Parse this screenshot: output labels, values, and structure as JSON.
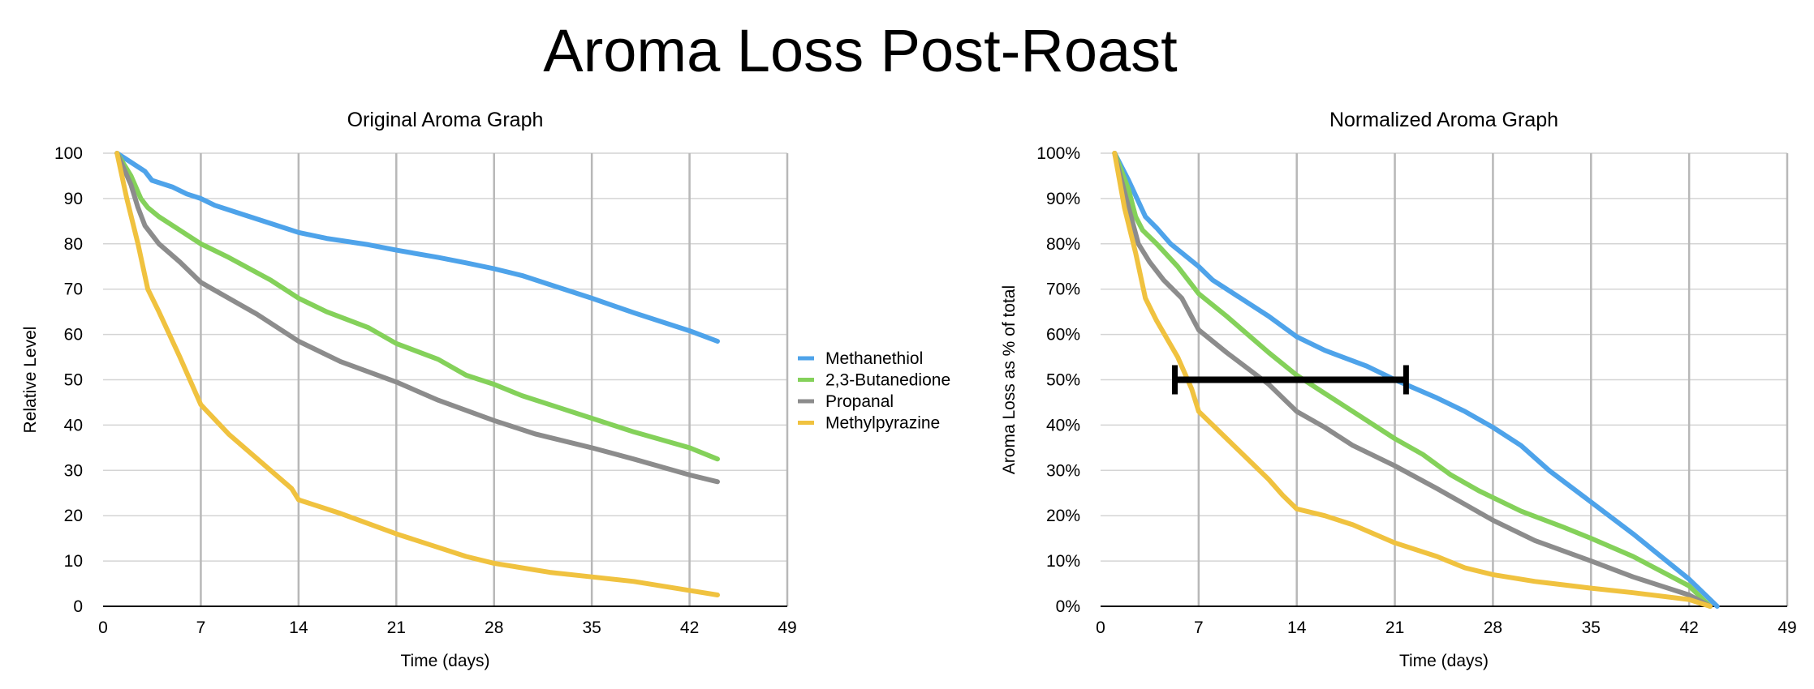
{
  "title": "Aroma Loss Post-Roast",
  "chart_data": [
    {
      "type": "line",
      "title": "Original Aroma Graph",
      "xlabel": "Time (days)",
      "ylabel": "Relative Level",
      "xlim": [
        0,
        49
      ],
      "ylim": [
        0,
        100
      ],
      "xticks": [
        0,
        7,
        14,
        21,
        28,
        35,
        42,
        49
      ],
      "yticks": [
        0,
        10,
        20,
        30,
        40,
        50,
        60,
        70,
        80,
        90,
        100
      ],
      "ytick_format": "number",
      "grid": true,
      "legend": "right",
      "series": [
        {
          "name": "Methanethiol",
          "color": "#4ea3ea",
          "points": [
            [
              1,
              100
            ],
            [
              2,
              98
            ],
            [
              2.5,
              97
            ],
            [
              3,
              96
            ],
            [
              3.5,
              94
            ],
            [
              5,
              92.5
            ],
            [
              6,
              91
            ],
            [
              7,
              90
            ],
            [
              8,
              88.5
            ],
            [
              10,
              86.5
            ],
            [
              12,
              84.5
            ],
            [
              14,
              82.5
            ],
            [
              16,
              81.2
            ],
            [
              19,
              79.8
            ],
            [
              21,
              78.6
            ],
            [
              24,
              77
            ],
            [
              26,
              75.8
            ],
            [
              28,
              74.5
            ],
            [
              30,
              73
            ],
            [
              32,
              71
            ],
            [
              35,
              68
            ],
            [
              38,
              64.8
            ],
            [
              42,
              60.8
            ],
            [
              44,
              58.5
            ]
          ]
        },
        {
          "name": "2,3-Butanedione",
          "color": "#84d15a",
          "points": [
            [
              1,
              100
            ],
            [
              2,
              95
            ],
            [
              2.7,
              90
            ],
            [
              3.2,
              88
            ],
            [
              4,
              86
            ],
            [
              5.5,
              83
            ],
            [
              7,
              80
            ],
            [
              9,
              77
            ],
            [
              12,
              72
            ],
            [
              14,
              68
            ],
            [
              16,
              65
            ],
            [
              19,
              61.5
            ],
            [
              21,
              58
            ],
            [
              24,
              54.5
            ],
            [
              26,
              51
            ],
            [
              28,
              49
            ],
            [
              30,
              46.5
            ],
            [
              33,
              43.5
            ],
            [
              35,
              41.5
            ],
            [
              38,
              38.5
            ],
            [
              42,
              35
            ],
            [
              44,
              32.5
            ]
          ]
        },
        {
          "name": "Propanal",
          "color": "#8c8c8c",
          "points": [
            [
              1,
              100
            ],
            [
              2,
              93
            ],
            [
              2.5,
              88
            ],
            [
              3,
              84
            ],
            [
              4,
              80
            ],
            [
              5.5,
              76
            ],
            [
              7,
              71.5
            ],
            [
              9,
              68
            ],
            [
              11,
              64.5
            ],
            [
              14,
              58.5
            ],
            [
              17,
              54
            ],
            [
              21,
              49.5
            ],
            [
              24,
              45.5
            ],
            [
              28,
              41
            ],
            [
              31,
              38
            ],
            [
              35,
              35
            ],
            [
              38,
              32.5
            ],
            [
              42,
              29
            ],
            [
              44,
              27.5
            ]
          ]
        },
        {
          "name": "Methylpyrazine",
          "color": "#f0c23f",
          "points": [
            [
              1,
              100
            ],
            [
              1.7,
              90
            ],
            [
              2.5,
              80
            ],
            [
              3.2,
              70
            ],
            [
              4,
              65
            ],
            [
              5.5,
              55
            ],
            [
              7,
              44.5
            ],
            [
              9,
              38
            ],
            [
              12,
              30
            ],
            [
              13.5,
              26
            ],
            [
              14,
              23.5
            ],
            [
              17,
              20.5
            ],
            [
              21,
              16
            ],
            [
              24,
              13
            ],
            [
              26,
              11
            ],
            [
              28,
              9.5
            ],
            [
              32,
              7.5
            ],
            [
              35,
              6.5
            ],
            [
              38,
              5.5
            ],
            [
              42,
              3.5
            ],
            [
              44,
              2.5
            ]
          ]
        }
      ]
    },
    {
      "type": "line",
      "title": "Normalized Aroma Graph",
      "xlabel": "Time (days)",
      "ylabel": "Aroma Loss as % of total",
      "xlim": [
        0,
        49
      ],
      "ylim": [
        0,
        100
      ],
      "xticks": [
        0,
        7,
        14,
        21,
        28,
        35,
        42,
        49
      ],
      "yticks": [
        0,
        10,
        20,
        30,
        40,
        50,
        60,
        70,
        80,
        90,
        100
      ],
      "ytick_format": "percent",
      "grid": true,
      "annotation": {
        "type": "interval-bar",
        "x_start": 5.3,
        "x_end": 21.8,
        "y": 50,
        "color": "#000000"
      },
      "series": [
        {
          "name": "Methanethiol",
          "color": "#4ea3ea",
          "points": [
            [
              1,
              100
            ],
            [
              2,
              94
            ],
            [
              2.6,
              90
            ],
            [
              3.2,
              86
            ],
            [
              4,
              83.5
            ],
            [
              5,
              80
            ],
            [
              5.6,
              78.5
            ],
            [
              7,
              75
            ],
            [
              8,
              72
            ],
            [
              10,
              68
            ],
            [
              12,
              64
            ],
            [
              14,
              59.5
            ],
            [
              16,
              56.5
            ],
            [
              19,
              53
            ],
            [
              21,
              50
            ],
            [
              24,
              46
            ],
            [
              26,
              43
            ],
            [
              28,
              39.5
            ],
            [
              30,
              35.5
            ],
            [
              32,
              30
            ],
            [
              35,
              23
            ],
            [
              38,
              16
            ],
            [
              42,
              6
            ],
            [
              44,
              0
            ]
          ]
        },
        {
          "name": "2,3-Butanedione",
          "color": "#84d15a",
          "points": [
            [
              1,
              100
            ],
            [
              2,
              92
            ],
            [
              2.5,
              86
            ],
            [
              3,
              83
            ],
            [
              4,
              80
            ],
            [
              5.5,
              75
            ],
            [
              7,
              69
            ],
            [
              9,
              64
            ],
            [
              12,
              56
            ],
            [
              14,
              51
            ],
            [
              16,
              47
            ],
            [
              18,
              43
            ],
            [
              21,
              37
            ],
            [
              23,
              33.5
            ],
            [
              25,
              29
            ],
            [
              27,
              25.5
            ],
            [
              28,
              24
            ],
            [
              30,
              21
            ],
            [
              33,
              17.5
            ],
            [
              35,
              15
            ],
            [
              38,
              11
            ],
            [
              42,
              4.5
            ],
            [
              43.5,
              0
            ]
          ]
        },
        {
          "name": "Propanal",
          "color": "#8c8c8c",
          "points": [
            [
              1,
              100
            ],
            [
              2,
              88
            ],
            [
              2.7,
              80
            ],
            [
              3.5,
              76
            ],
            [
              4.5,
              72
            ],
            [
              5.8,
              68
            ],
            [
              7,
              61
            ],
            [
              9,
              56
            ],
            [
              12,
              49
            ],
            [
              14,
              43
            ],
            [
              16,
              39.5
            ],
            [
              18,
              35.5
            ],
            [
              21,
              31
            ],
            [
              24,
              26
            ],
            [
              26,
              22.5
            ],
            [
              28,
              19
            ],
            [
              31,
              14.5
            ],
            [
              35,
              10
            ],
            [
              38,
              6.5
            ],
            [
              42,
              2.5
            ],
            [
              43.5,
              0
            ]
          ]
        },
        {
          "name": "Methylpyrazine",
          "color": "#f0c23f",
          "points": [
            [
              1,
              100
            ],
            [
              1.7,
              88
            ],
            [
              2.5,
              78
            ],
            [
              3.2,
              68
            ],
            [
              4,
              63
            ],
            [
              5.5,
              55
            ],
            [
              6.5,
              48
            ],
            [
              7,
              43
            ],
            [
              9,
              37
            ],
            [
              12,
              28
            ],
            [
              13,
              24.5
            ],
            [
              14,
              21.5
            ],
            [
              16,
              20
            ],
            [
              18,
              18
            ],
            [
              21,
              14
            ],
            [
              24,
              11
            ],
            [
              26,
              8.5
            ],
            [
              28,
              7
            ],
            [
              31,
              5.5
            ],
            [
              35,
              4
            ],
            [
              38,
              3
            ],
            [
              42,
              1.5
            ],
            [
              43.5,
              0
            ]
          ]
        }
      ]
    }
  ]
}
